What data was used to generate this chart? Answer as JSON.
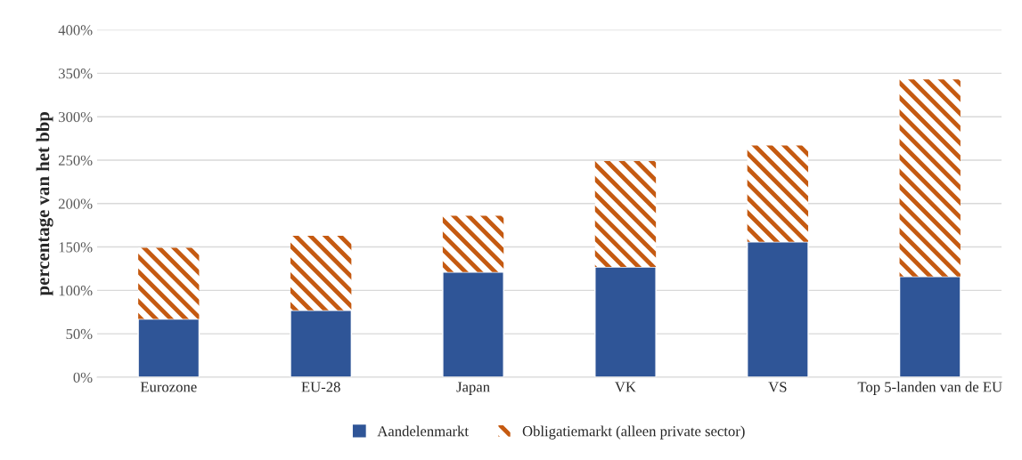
{
  "chart_data": {
    "type": "bar",
    "stacked": true,
    "ylabel": "percentage van het bbp",
    "categories": [
      "Eurozone",
      "EU-28",
      "Japan",
      "VK",
      "VS",
      "Top 5-landen van de EU"
    ],
    "series": [
      {
        "name": "Aandelenmarkt",
        "color": "#2f5597",
        "values": [
          67,
          77,
          121,
          127,
          156,
          116
        ]
      },
      {
        "name": "Obligatiemarkt (alleen private sector)",
        "color": "#c55a11",
        "values": [
          82,
          86,
          65,
          122,
          111,
          227
        ]
      }
    ],
    "ylim": [
      0,
      400
    ],
    "yticks": [
      {
        "value": 0,
        "label": "0%"
      },
      {
        "value": 50,
        "label": "50%"
      },
      {
        "value": 100,
        "label": "100%"
      },
      {
        "value": 150,
        "label": "150%"
      },
      {
        "value": 200,
        "label": "200%"
      },
      {
        "value": 250,
        "label": "250%"
      },
      {
        "value": 300,
        "label": "300%"
      },
      {
        "value": 350,
        "label": "350%"
      },
      {
        "value": 400,
        "label": "400%"
      }
    ],
    "grid": "y",
    "legend": "bottom"
  }
}
